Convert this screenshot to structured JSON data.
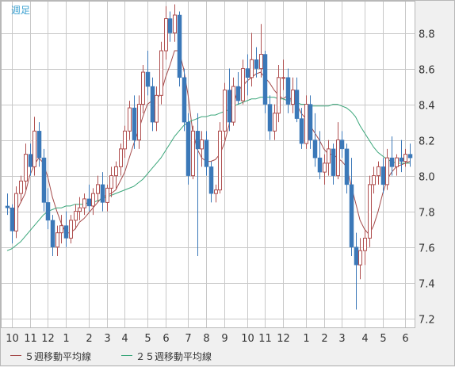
{
  "chart_data": {
    "type": "candlestick",
    "title": "週足",
    "y_ticks": [
      "7.2",
      "7.4",
      "7.6",
      "7.8",
      "8.0",
      "8.2",
      "8.4",
      "8.6",
      "8.8"
    ],
    "ylim": [
      7.15,
      8.98
    ],
    "x_ticks": [
      "10",
      "11",
      "12",
      "1",
      "2",
      "3",
      "4",
      "5",
      "6",
      "7",
      "8",
      "9",
      "10",
      "11",
      "12",
      "1",
      "2",
      "3",
      "4",
      "5",
      "6"
    ],
    "x_tick_weeks": [
      1,
      5,
      9,
      13,
      18,
      22,
      26,
      31,
      35,
      40,
      44,
      48,
      53,
      57,
      61,
      66,
      70,
      74,
      79,
      83,
      88
    ],
    "candles": [
      [
        7.83,
        7.9,
        7.78,
        7.82
      ],
      [
        7.82,
        7.84,
        7.62,
        7.69
      ],
      [
        7.69,
        7.94,
        7.65,
        7.9
      ],
      [
        7.9,
        8.0,
        7.85,
        7.97
      ],
      [
        7.97,
        8.18,
        7.92,
        8.12
      ],
      [
        8.12,
        8.18,
        8.0,
        8.05
      ],
      [
        8.05,
        8.33,
        8.0,
        8.25
      ],
      [
        8.25,
        8.3,
        8.05,
        8.1
      ],
      [
        8.1,
        8.15,
        7.8,
        7.85
      ],
      [
        7.85,
        7.93,
        7.7,
        7.75
      ],
      [
        7.75,
        7.78,
        7.55,
        7.6
      ],
      [
        7.6,
        7.72,
        7.55,
        7.68
      ],
      [
        7.68,
        7.78,
        7.62,
        7.72
      ],
      [
        7.72,
        7.8,
        7.6,
        7.65
      ],
      [
        7.65,
        7.78,
        7.62,
        7.75
      ],
      [
        7.75,
        7.84,
        7.7,
        7.8
      ],
      [
        7.8,
        7.88,
        7.75,
        7.82
      ],
      [
        7.82,
        7.9,
        7.78,
        7.87
      ],
      [
        7.87,
        7.95,
        7.8,
        7.83
      ],
      [
        7.83,
        7.93,
        7.78,
        7.9
      ],
      [
        7.9,
        8.0,
        7.85,
        7.95
      ],
      [
        7.95,
        8.02,
        7.8,
        7.85
      ],
      [
        7.85,
        7.95,
        7.8,
        7.93
      ],
      [
        7.93,
        8.05,
        7.88,
        8.0
      ],
      [
        8.0,
        8.08,
        7.92,
        8.05
      ],
      [
        8.05,
        8.18,
        8.0,
        8.15
      ],
      [
        8.15,
        8.28,
        8.1,
        8.25
      ],
      [
        8.25,
        8.42,
        8.2,
        8.38
      ],
      [
        8.38,
        8.45,
        8.15,
        8.2
      ],
      [
        8.2,
        8.45,
        8.15,
        8.4
      ],
      [
        8.4,
        8.62,
        8.35,
        8.58
      ],
      [
        8.58,
        8.7,
        8.45,
        8.5
      ],
      [
        8.5,
        8.55,
        8.25,
        8.3
      ],
      [
        8.3,
        8.5,
        8.25,
        8.45
      ],
      [
        8.45,
        8.75,
        8.4,
        8.7
      ],
      [
        8.7,
        8.95,
        8.65,
        8.88
      ],
      [
        8.88,
        8.92,
        8.75,
        8.8
      ],
      [
        8.8,
        8.96,
        8.75,
        8.9
      ],
      [
        8.9,
        8.92,
        8.5,
        8.55
      ],
      [
        8.55,
        8.6,
        8.25,
        8.3
      ],
      [
        8.3,
        8.35,
        7.95,
        8.0
      ],
      [
        8.0,
        8.28,
        7.98,
        8.25
      ],
      [
        8.25,
        8.35,
        7.55,
        8.15
      ],
      [
        8.15,
        8.25,
        8.05,
        8.2
      ],
      [
        8.2,
        8.25,
        8.0,
        8.05
      ],
      [
        8.05,
        8.08,
        7.85,
        7.9
      ],
      [
        7.9,
        7.95,
        7.85,
        7.92
      ],
      [
        7.92,
        8.3,
        7.9,
        8.25
      ],
      [
        8.25,
        8.52,
        8.2,
        8.48
      ],
      [
        8.48,
        8.6,
        8.25,
        8.3
      ],
      [
        8.3,
        8.55,
        8.28,
        8.5
      ],
      [
        8.5,
        8.58,
        8.4,
        8.42
      ],
      [
        8.42,
        8.65,
        8.4,
        8.6
      ],
      [
        8.6,
        8.68,
        8.45,
        8.55
      ],
      [
        8.55,
        8.8,
        8.5,
        8.65
      ],
      [
        8.65,
        8.72,
        8.55,
        8.6
      ],
      [
        8.6,
        8.85,
        8.55,
        8.68
      ],
      [
        8.68,
        8.7,
        8.35,
        8.4
      ],
      [
        8.4,
        8.45,
        8.2,
        8.25
      ],
      [
        8.25,
        8.4,
        8.2,
        8.35
      ],
      [
        8.35,
        8.62,
        8.3,
        8.55
      ],
      [
        8.55,
        8.65,
        8.48,
        8.55
      ],
      [
        8.55,
        8.6,
        8.35,
        8.4
      ],
      [
        8.4,
        8.55,
        8.35,
        8.48
      ],
      [
        8.48,
        8.55,
        8.3,
        8.32
      ],
      [
        8.32,
        8.38,
        8.15,
        8.18
      ],
      [
        8.18,
        8.45,
        8.15,
        8.4
      ],
      [
        8.4,
        8.45,
        8.15,
        8.2
      ],
      [
        8.2,
        8.35,
        8.05,
        8.1
      ],
      [
        8.1,
        8.25,
        7.98,
        8.02
      ],
      [
        8.02,
        8.12,
        7.95,
        8.07
      ],
      [
        8.07,
        8.2,
        8.0,
        8.15
      ],
      [
        8.15,
        8.18,
        7.95,
        8.0
      ],
      [
        8.0,
        8.3,
        7.98,
        8.2
      ],
      [
        8.2,
        8.25,
        8.1,
        8.15
      ],
      [
        8.15,
        8.18,
        7.9,
        7.95
      ],
      [
        7.95,
        8.1,
        7.55,
        7.6
      ],
      [
        7.6,
        7.68,
        7.25,
        7.5
      ],
      [
        7.5,
        7.65,
        7.42,
        7.58
      ],
      [
        7.58,
        7.7,
        7.5,
        7.65
      ],
      [
        7.65,
        8.0,
        7.6,
        7.95
      ],
      [
        7.95,
        8.05,
        7.9,
        8.0
      ],
      [
        8.0,
        8.08,
        7.95,
        8.05
      ],
      [
        8.05,
        8.1,
        7.9,
        7.95
      ],
      [
        7.95,
        8.15,
        7.92,
        8.1
      ],
      [
        8.1,
        8.22,
        8.0,
        8.05
      ],
      [
        8.05,
        8.12,
        8.0,
        8.1
      ],
      [
        8.1,
        8.2,
        8.02,
        8.08
      ],
      [
        8.08,
        8.15,
        8.05,
        8.12
      ],
      [
        8.12,
        8.18,
        8.05,
        8.1
      ]
    ],
    "series": [
      {
        "name": "５週移動平均線",
        "color": "#a44a4a",
        "values": [
          7.83,
          7.81,
          7.8,
          7.85,
          7.9,
          8.0,
          8.06,
          8.1,
          8.07,
          7.99,
          7.88,
          7.8,
          7.73,
          7.68,
          7.68,
          7.7,
          7.74,
          7.76,
          7.79,
          7.82,
          7.85,
          7.88,
          7.89,
          7.9,
          7.92,
          7.97,
          8.02,
          8.1,
          8.18,
          8.25,
          8.33,
          8.4,
          8.42,
          8.43,
          8.46,
          8.55,
          8.62,
          8.7,
          8.7,
          8.6,
          8.45,
          8.25,
          8.15,
          8.1,
          8.08,
          8.08,
          8.09,
          8.12,
          8.18,
          8.28,
          8.4,
          8.48,
          8.5,
          8.53,
          8.55,
          8.57,
          8.58,
          8.55,
          8.52,
          8.48,
          8.45,
          8.43,
          8.45,
          8.42,
          8.4,
          8.35,
          8.32,
          8.28,
          8.24,
          8.2,
          8.15,
          8.12,
          8.12,
          8.1,
          8.08,
          8.05,
          7.95,
          7.85,
          7.75,
          7.7,
          7.67,
          7.72,
          7.8,
          7.9,
          7.98,
          8.02,
          8.05,
          8.06,
          8.07,
          8.08
        ]
      },
      {
        "name": "２５週移動平均線",
        "color": "#3aa67a",
        "values": [
          7.58,
          7.59,
          7.61,
          7.63,
          7.66,
          7.69,
          7.72,
          7.75,
          7.78,
          7.8,
          7.81,
          7.82,
          7.82,
          7.83,
          7.83,
          7.84,
          7.84,
          7.84,
          7.85,
          7.85,
          7.86,
          7.87,
          7.88,
          7.89,
          7.9,
          7.91,
          7.92,
          7.93,
          7.94,
          7.96,
          7.98,
          8.01,
          8.04,
          8.07,
          8.1,
          8.14,
          8.18,
          8.22,
          8.25,
          8.28,
          8.3,
          8.31,
          8.32,
          8.33,
          8.33,
          8.34,
          8.34,
          8.35,
          8.36,
          8.37,
          8.39,
          8.4,
          8.41,
          8.42,
          8.43,
          8.43,
          8.44,
          8.44,
          8.44,
          8.44,
          8.43,
          8.43,
          8.42,
          8.42,
          8.41,
          8.4,
          8.4,
          8.39,
          8.39,
          8.39,
          8.39,
          8.39,
          8.4,
          8.4,
          8.39,
          8.38,
          8.36,
          8.33,
          8.28,
          8.24,
          8.2,
          8.16,
          8.13,
          8.11,
          8.09,
          8.08,
          8.07,
          8.07,
          8.07,
          8.07
        ]
      }
    ],
    "up_color": "#b05050",
    "down_color": "#3b78b8",
    "grid": true
  }
}
